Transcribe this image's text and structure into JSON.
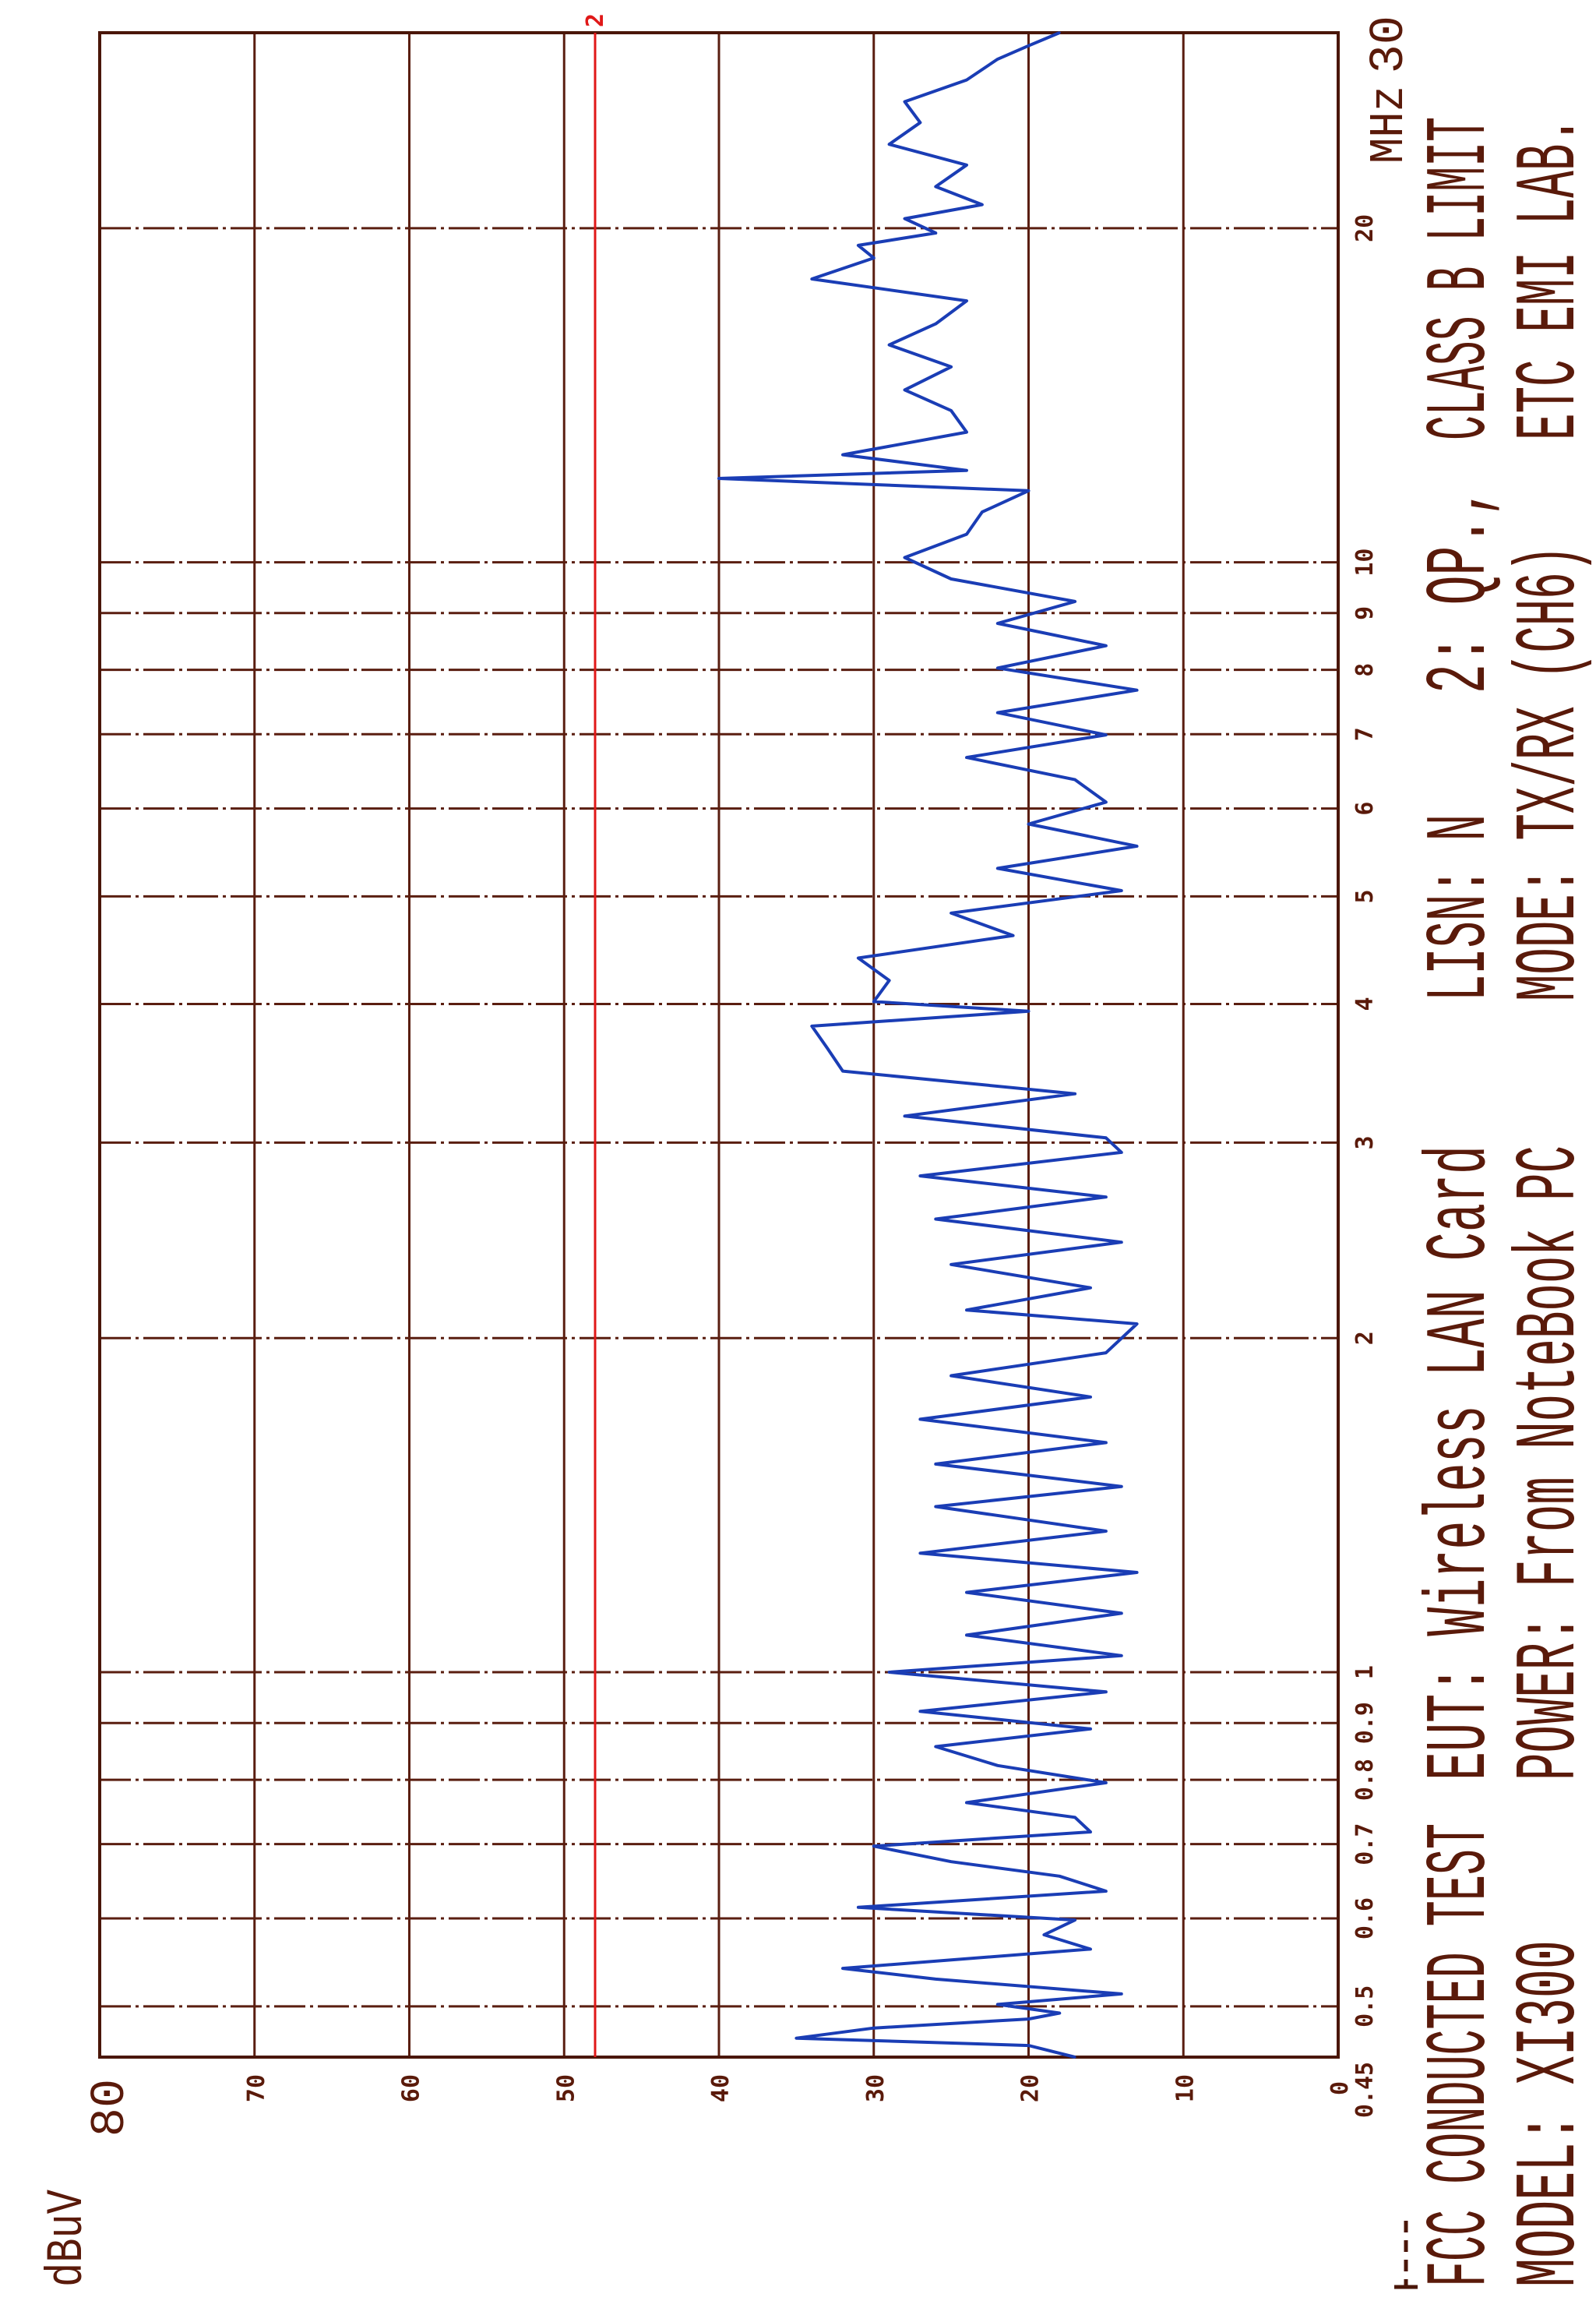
{
  "chart_data": {
    "type": "line",
    "xlabel": "MHz",
    "ylabel": "dBuV",
    "xscale": "log",
    "orientation": "rotated 90° counter-clockwise (frequency runs bottom-to-top, level left-to-right decreasing)",
    "xlim": [
      0.45,
      30
    ],
    "ylim": [
      0,
      80
    ],
    "grid": true,
    "x_ticks": [
      0.45,
      0.5,
      0.6,
      0.7,
      0.8,
      0.9,
      1,
      2,
      3,
      4,
      5,
      6,
      7,
      8,
      9,
      10,
      20,
      30
    ],
    "x_tick_labels": [
      "0.45",
      "0.5",
      "0.6",
      "0.7",
      "0.8",
      "0.9",
      "1",
      "2",
      "3",
      "4",
      "5",
      "6",
      "7",
      "8",
      "9",
      "10",
      "20",
      "30"
    ],
    "y_ticks": [
      0,
      10,
      20,
      30,
      40,
      50,
      60,
      70,
      80
    ],
    "y_tick_labels": [
      "0",
      "10",
      "20",
      "30",
      "40",
      "50",
      "60",
      "70",
      "80"
    ],
    "limit_line": {
      "label": "2",
      "value": 48,
      "color": "#e01818"
    },
    "trace_color": "#1a3db5",
    "grid_color": "#5a1e10",
    "series": [
      {
        "freq_mhz": [
          0.45,
          0.461,
          0.468,
          0.478,
          0.487,
          0.493,
          0.502,
          0.513,
          0.529,
          0.541,
          0.563,
          0.58,
          0.598,
          0.614,
          0.635,
          0.655,
          0.675,
          0.697,
          0.718,
          0.74,
          0.763,
          0.795,
          0.824,
          0.857,
          0.889,
          0.922,
          0.96,
          1.0,
          1.035,
          1.08,
          1.13,
          1.18,
          1.23,
          1.28,
          1.34,
          1.41,
          1.47,
          1.54,
          1.61,
          1.69,
          1.77,
          1.85,
          1.94,
          2.06,
          2.12,
          2.22,
          2.33,
          2.44,
          2.56,
          2.68,
          2.8,
          2.94,
          3.03,
          3.17,
          3.32,
          3.48,
          3.65,
          3.82,
          3.94,
          4.02,
          4.2,
          4.4,
          4.61,
          4.83,
          5.06,
          5.3,
          5.55,
          5.81,
          6.08,
          6.37,
          6.67,
          6.99,
          7.32,
          7.67,
          8.03,
          8.41,
          8.81,
          9.22,
          9.66,
          10.1,
          10.6,
          11.1,
          11.6,
          11.9,
          12.1,
          12.5,
          13.1,
          13.7,
          14.3,
          15.0,
          15.7,
          16.4,
          17.2,
          18.0,
          18.8,
          19.3,
          19.8,
          20.4,
          21.0,
          21.8,
          22.8,
          23.8,
          24.9,
          26.0,
          27.2,
          28.4,
          29.2,
          30.0
        ],
        "level_dbuv": [
          17,
          20,
          35,
          30,
          20,
          18,
          22,
          14,
          26,
          32,
          16,
          19,
          17,
          31,
          15,
          18,
          25,
          30,
          16,
          17,
          24,
          15,
          22,
          26,
          16,
          27,
          15,
          29,
          14,
          24,
          14,
          24,
          13,
          27,
          15,
          26,
          14,
          26,
          15,
          27,
          16,
          25,
          15,
          13,
          24,
          16,
          25,
          14,
          26,
          15,
          27,
          14,
          15,
          28,
          17,
          32,
          33,
          34,
          20,
          30,
          29,
          31,
          21,
          25,
          14,
          22,
          13,
          20,
          15,
          17,
          24,
          15,
          22,
          13,
          22,
          15,
          22,
          17,
          25,
          28,
          24,
          23,
          20,
          40,
          24,
          32,
          24,
          25,
          28,
          25,
          29,
          26,
          24,
          34,
          30,
          31,
          26,
          28,
          23,
          26,
          24,
          29,
          27,
          28,
          24,
          22,
          20,
          18
        ]
      }
    ]
  },
  "annotations": {
    "line1": [
      "FCC CONDUCTED TEST",
      "EUT: Wireless LAN Card",
      "LISN: N",
      "2: QP.,",
      "CLASS B LIMIT"
    ],
    "line2": [
      "MODEL: XI300",
      "POWER: From NoteBook PC",
      "MODE: TX/RX (CH6)",
      "ETC EMI LAB."
    ]
  }
}
